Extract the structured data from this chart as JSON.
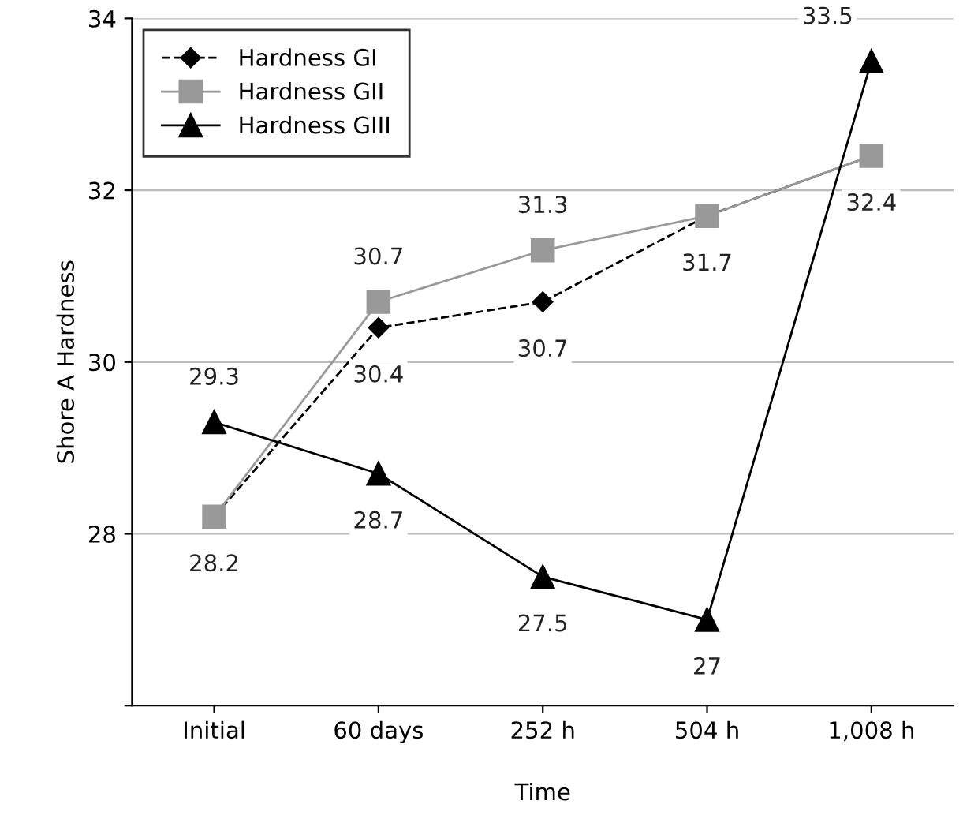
{
  "chart_data": {
    "type": "line",
    "xlabel": "Time",
    "ylabel": "Shore A Hardness",
    "categories": [
      "Initial",
      "60 days",
      "252 h",
      "504 h",
      "1,008 h"
    ],
    "series": [
      {
        "name": "Hardness GI",
        "color": "#000000",
        "marker": "diamond",
        "line_style": "dashed",
        "values": [
          28.2,
          30.4,
          30.7,
          31.7,
          32.4
        ],
        "value_labels": [
          "28.2",
          "30.4",
          "30.7",
          "31.7",
          "32.4"
        ]
      },
      {
        "name": "Hardness GII",
        "color": "#999999",
        "marker": "square",
        "line_style": "solid",
        "values": [
          28.2,
          30.7,
          31.3,
          31.7,
          32.4
        ],
        "value_labels": [
          null,
          "30.7",
          "31.3",
          null,
          null
        ]
      },
      {
        "name": "Hardness GIII",
        "color": "#000000",
        "marker": "triangle",
        "line_style": "solid",
        "values": [
          29.3,
          28.7,
          27.5,
          27,
          33.5
        ],
        "value_labels": [
          "29.3",
          "28.7",
          "27.5",
          "27",
          "33.5"
        ]
      }
    ],
    "ylim": [
      26,
      34
    ],
    "yticks": [
      {
        "value": 26,
        "label": null
      },
      28,
      30,
      32,
      34
    ],
    "grid": "y",
    "legend": "top left"
  }
}
